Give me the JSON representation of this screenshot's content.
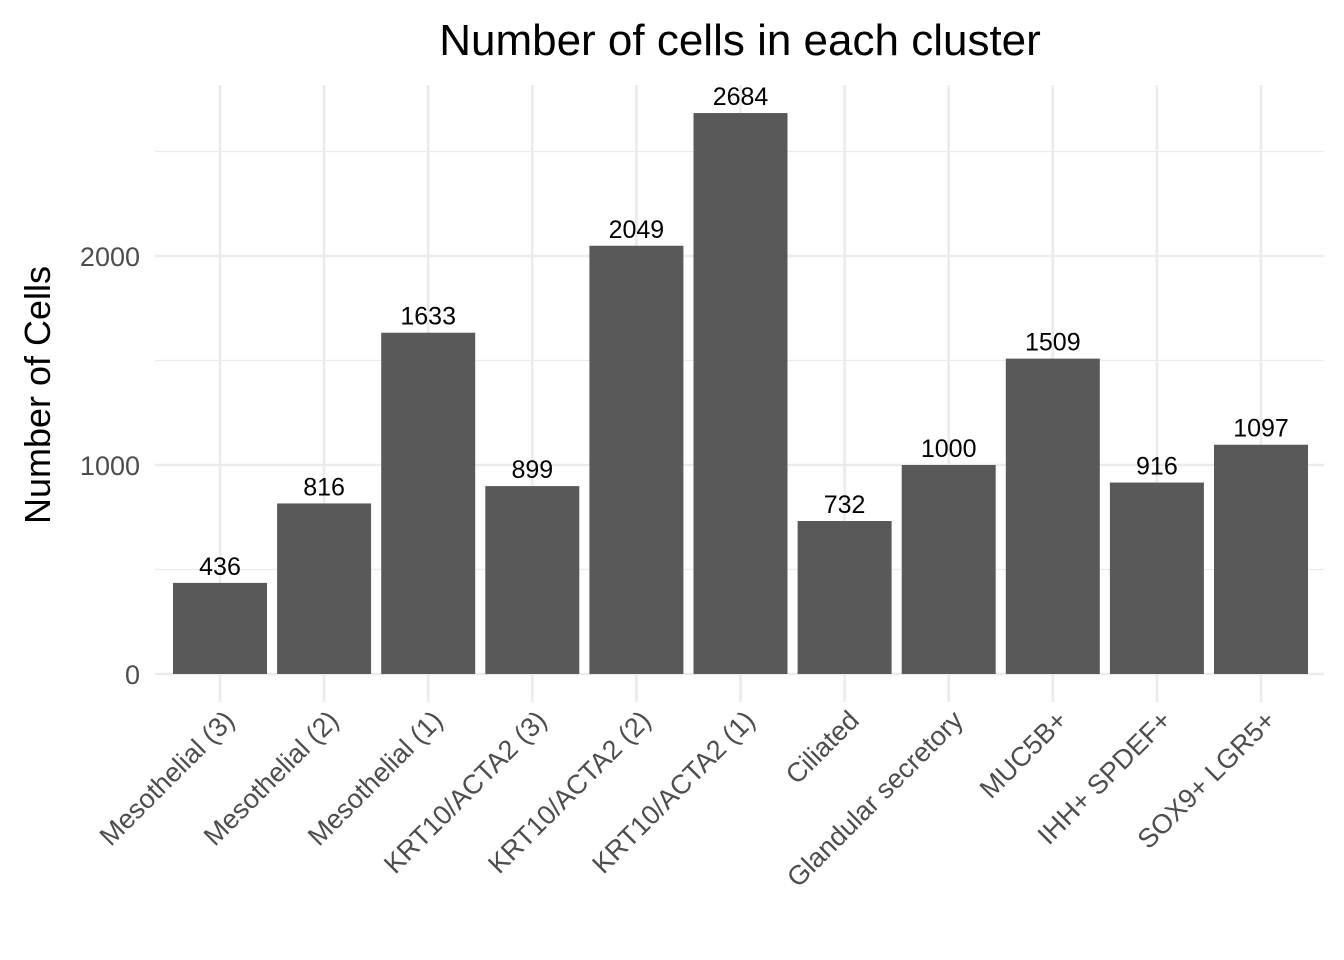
{
  "chart_data": {
    "type": "bar",
    "title": "Number of cells in each cluster",
    "xlabel": "",
    "ylabel": "Number of Cells",
    "categories": [
      "Mesothelial (3)",
      "Mesothelial (2)",
      "Mesothelial (1)",
      "KRT10/ACTA2 (3)",
      "KRT10/ACTA2 (2)",
      "KRT10/ACTA2 (1)",
      "Ciliated",
      "Glandular secretory",
      "MUC5B+",
      "IHH+ SPDEF+",
      "SOX9+ LGR5+"
    ],
    "values": [
      436,
      816,
      1633,
      899,
      2049,
      2684,
      732,
      1000,
      1509,
      916,
      1097
    ],
    "data_labels": [
      "436",
      "816",
      "1633",
      "899",
      "2049",
      "2684",
      "732",
      "1000",
      "1509",
      "916",
      "1097"
    ],
    "yticks": [
      0,
      1000,
      2000
    ],
    "ytick_labels": [
      "0",
      "1000",
      "2000"
    ],
    "ylim": [
      0,
      2818
    ],
    "grid": true,
    "bar_color": "#595959",
    "legend": "none"
  }
}
